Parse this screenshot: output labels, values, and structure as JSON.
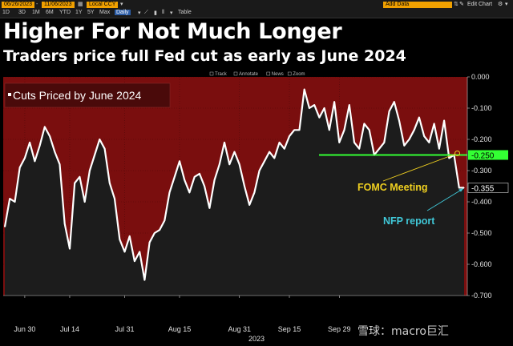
{
  "toolbar": {
    "start_date": "06/26/2023",
    "end_date": "11/06/2023",
    "currency": "Local CCY",
    "ranges": [
      "1D",
      "3D",
      "1M",
      "6M",
      "YTD",
      "1Y",
      "5Y",
      "Max"
    ],
    "frequency": "Daily",
    "table_label": "Table",
    "add_data_placeholder": "Add Data",
    "edit_chart_label": "Edit Chart"
  },
  "chart_toolbar": [
    "Track",
    "Annotate",
    "News",
    "Zoom"
  ],
  "watermark": "雪球：macro巨汇",
  "colors": {
    "background": "#000000",
    "plot_fill_red": "#7a0e0e",
    "line": "#ffffff",
    "area_fill": "#1c1c1c",
    "green_line": "#33ff33",
    "fomc_label": "#f0d020",
    "nfp_label": "#40c8d8"
  },
  "chart_data": {
    "type": "area",
    "title": "Higher For Not Much Longer",
    "subtitle": "Traders price full Fed cut as early as June 2024",
    "legend": "Cuts Priced by June 2024",
    "legend_placement": "top-left",
    "x_year_label": "2023",
    "x_ticks": [
      "Jun 30",
      "Jul 14",
      "Jul 31",
      "Aug 15",
      "Aug 31",
      "Sep 15",
      "Sep 29"
    ],
    "y_ticks": [
      "0.000",
      "-0.100",
      "-0.200",
      "-0.300",
      "-0.400",
      "-0.500",
      "-0.600",
      "-0.700"
    ],
    "ylim": [
      -0.7,
      0
    ],
    "x": [
      "Jun 26",
      "Jun 27",
      "Jun 28",
      "Jun 29",
      "Jun 30",
      "Jul 3",
      "Jul 5",
      "Jul 6",
      "Jul 7",
      "Jul 10",
      "Jul 11",
      "Jul 12",
      "Jul 13",
      "Jul 14",
      "Jul 17",
      "Jul 18",
      "Jul 19",
      "Jul 20",
      "Jul 21",
      "Jul 24",
      "Jul 25",
      "Jul 26",
      "Jul 27",
      "Jul 28",
      "Jul 31",
      "Aug 1",
      "Aug 2",
      "Aug 3",
      "Aug 4",
      "Aug 7",
      "Aug 8",
      "Aug 9",
      "Aug 10",
      "Aug 11",
      "Aug 14",
      "Aug 15",
      "Aug 16",
      "Aug 17",
      "Aug 18",
      "Aug 21",
      "Aug 22",
      "Aug 23",
      "Aug 24",
      "Aug 25",
      "Aug 28",
      "Aug 29",
      "Aug 30",
      "Aug 31",
      "Sep 1",
      "Sep 5",
      "Sep 6",
      "Sep 7",
      "Sep 8",
      "Sep 11",
      "Sep 12",
      "Sep 13",
      "Sep 14",
      "Sep 15",
      "Sep 18",
      "Sep 19",
      "Sep 20",
      "Sep 21",
      "Sep 22",
      "Sep 25",
      "Sep 26",
      "Sep 27",
      "Sep 28",
      "Sep 29",
      "Oct 2",
      "Oct 3",
      "Oct 4",
      "Oct 5",
      "Oct 6",
      "Oct 9",
      "Oct 10",
      "Oct 11",
      "Oct 12",
      "Oct 13",
      "Oct 16",
      "Oct 17",
      "Oct 18",
      "Oct 19",
      "Oct 20",
      "Oct 23",
      "Oct 24",
      "Oct 25",
      "Oct 26",
      "Oct 27",
      "Oct 30",
      "Oct 31",
      "Nov 1",
      "Nov 2",
      "Nov 3"
    ],
    "values": [
      -0.48,
      -0.39,
      -0.4,
      -0.29,
      -0.26,
      -0.21,
      -0.27,
      -0.22,
      -0.16,
      -0.19,
      -0.24,
      -0.28,
      -0.47,
      -0.55,
      -0.34,
      -0.32,
      -0.4,
      -0.3,
      -0.25,
      -0.2,
      -0.23,
      -0.34,
      -0.39,
      -0.52,
      -0.56,
      -0.51,
      -0.59,
      -0.56,
      -0.65,
      -0.53,
      -0.5,
      -0.49,
      -0.46,
      -0.37,
      -0.32,
      -0.27,
      -0.33,
      -0.37,
      -0.32,
      -0.31,
      -0.35,
      -0.42,
      -0.33,
      -0.28,
      -0.21,
      -0.28,
      -0.24,
      -0.28,
      -0.35,
      -0.41,
      -0.37,
      -0.3,
      -0.27,
      -0.24,
      -0.26,
      -0.21,
      -0.23,
      -0.19,
      -0.17,
      -0.17,
      -0.04,
      -0.1,
      -0.09,
      -0.13,
      -0.1,
      -0.17,
      -0.08,
      -0.21,
      -0.17,
      -0.09,
      -0.21,
      -0.23,
      -0.15,
      -0.17,
      -0.25,
      -0.23,
      -0.21,
      -0.11,
      -0.08,
      -0.14,
      -0.22,
      -0.2,
      -0.17,
      -0.13,
      -0.19,
      -0.21,
      -0.15,
      -0.23,
      -0.14,
      -0.26,
      -0.25,
      -0.355,
      -0.355
    ],
    "reference_line": {
      "value": -0.25,
      "label": "-0.250"
    },
    "last_value_label": "-0.355",
    "annotations": [
      {
        "text": "FOMC Meeting",
        "at": "Nov 1",
        "value": -0.25
      },
      {
        "text": "NFP report",
        "at": "Nov 3",
        "value": -0.355
      }
    ]
  }
}
